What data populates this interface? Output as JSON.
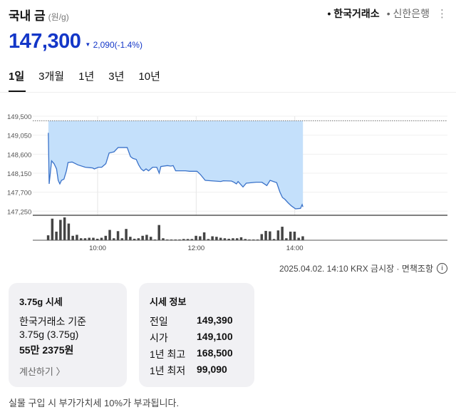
{
  "header": {
    "title": "국내 금",
    "unit": "(원/g)",
    "sources": [
      {
        "label": "• 한국거래소",
        "active": true
      },
      {
        "label": "• 신한은행",
        "active": false
      }
    ],
    "more_icon": "vertical-ellipsis-icon"
  },
  "quote": {
    "price": "147,300",
    "direction_icon": "down-triangle-icon",
    "change": "2,090",
    "change_pct": "(-1.4%)",
    "color": "#1437c8"
  },
  "tabs": [
    {
      "label": "1일",
      "active": true
    },
    {
      "label": "3개월"
    },
    {
      "label": "1년"
    },
    {
      "label": "3년"
    },
    {
      "label": "10년"
    }
  ],
  "chart_data": {
    "type": "area",
    "y_ticks": [
      "149,500",
      "149,050",
      "148,600",
      "148,150",
      "147,700",
      "147,250"
    ],
    "ylim": [
      147250,
      149500
    ],
    "x_ticks": [
      "10:00",
      "12:00",
      "14:00"
    ],
    "xlim": [
      "08:56",
      "15:48"
    ],
    "reference_line": {
      "value": 149390,
      "style": "dotted"
    },
    "series": {
      "x": [
        "09:00",
        "09:01",
        "09:04",
        "09:07",
        "09:10",
        "09:12",
        "09:14",
        "09:16",
        "09:19",
        "09:22",
        "09:24",
        "09:29",
        "09:36",
        "09:45",
        "09:54",
        "09:56",
        "10:01",
        "10:05",
        "10:10",
        "10:14",
        "10:20",
        "10:25",
        "10:36",
        "10:40",
        "10:43",
        "10:47",
        "10:50",
        "10:53",
        "10:56",
        "10:59",
        "11:02",
        "11:07",
        "11:12",
        "11:15",
        "11:17",
        "11:25",
        "11:29",
        "11:32",
        "11:35",
        "11:41",
        "11:47",
        "11:52",
        "12:01",
        "12:05",
        "12:11",
        "12:18",
        "12:30",
        "12:33",
        "12:43",
        "12:46",
        "12:49",
        "12:51",
        "12:57",
        "13:01",
        "13:13",
        "13:20",
        "13:26",
        "13:30",
        "13:38",
        "13:42",
        "13:45",
        "13:48",
        "13:52",
        "13:56",
        "14:01",
        "14:07",
        "14:09",
        "14:10"
      ],
      "y": [
        149106,
        147897,
        148442,
        148375,
        148251,
        147981,
        147897,
        147981,
        148009,
        148206,
        148403,
        148414,
        148347,
        148291,
        148274,
        148251,
        148291,
        148291,
        148375,
        148628,
        148656,
        148758,
        148758,
        148544,
        148499,
        148476,
        148347,
        148251,
        148206,
        148251,
        148206,
        148291,
        148291,
        148150,
        148308,
        148330,
        148319,
        148330,
        148206,
        148206,
        148206,
        148195,
        148195,
        148122,
        147981,
        147970,
        147953,
        147970,
        147964,
        147936,
        147897,
        147953,
        147824,
        147914,
        147936,
        147936,
        147857,
        147981,
        147925,
        147700,
        147576,
        147531,
        147447,
        147374,
        147306,
        147317,
        147407,
        147351
      ],
      "line_color": "#3a72c9",
      "fill_color": "#c4e0fb"
    },
    "volume": {
      "start": "09:00",
      "interval_min": 5,
      "values": [
        20,
        88,
        35,
        83,
        93,
        68,
        18,
        22,
        8,
        8,
        10,
        10,
        6,
        10,
        18,
        42,
        8,
        37,
        8,
        46,
        14,
        6,
        8,
        18,
        22,
        14,
        3,
        62,
        8,
        3,
        3,
        3,
        3,
        5,
        5,
        5,
        18,
        16,
        32,
        5,
        16,
        14,
        10,
        8,
        6,
        8,
        8,
        12,
        5,
        3,
        3,
        3,
        25,
        38,
        36,
        5,
        40,
        55,
        8,
        35,
        35,
        10,
        16
      ]
    }
  },
  "meta": {
    "text": "2025.04.02. 14:10 KRX 금시장 · 면책조항",
    "info_icon": "info-icon"
  },
  "card_gram": {
    "title": "3.75g 시세",
    "basis": "한국거래소 기준",
    "weight": "3.75g (3.75g)",
    "amount": "55만 2375원",
    "calc_label": "계산하기 〉"
  },
  "card_info": {
    "title": "시세 정보",
    "rows": [
      {
        "k": "전일",
        "v": "149,390"
      },
      {
        "k": "시가",
        "v": "149,100"
      },
      {
        "k": "1년 최고",
        "v": "168,500"
      },
      {
        "k": "1년 최저",
        "v": "99,090"
      }
    ]
  },
  "footnote": "실물 구입 시 부가가치세 10%가 부과됩니다."
}
